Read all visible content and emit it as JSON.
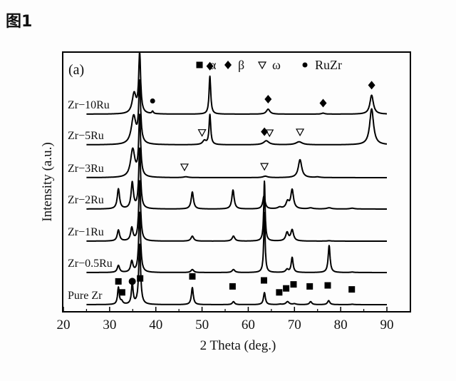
{
  "figure_label": "图1",
  "chart_data": {
    "type": "line",
    "panel_label": "(a)",
    "title": "",
    "xlabel": "2 Theta (deg.)",
    "ylabel": "Intensity (a.u.)",
    "xlim": [
      20,
      95
    ],
    "xticks": [
      20,
      30,
      40,
      50,
      60,
      70,
      80,
      90
    ],
    "x_minor_ticks": [
      25,
      35,
      45,
      55,
      65,
      75,
      85
    ],
    "grid": false,
    "legend_position": "top",
    "legend": [
      {
        "marker": "square",
        "label": "α"
      },
      {
        "marker": "diamond",
        "label": "β"
      },
      {
        "marker": "triangle-down-open",
        "label": "ω"
      },
      {
        "marker": "circle",
        "label": "RuZr"
      }
    ],
    "series": [
      {
        "name": "Zr-10Ru",
        "label": "Zr−10Ru",
        "peaks": [
          {
            "x": 35.3,
            "h": 1.0,
            "w": 0.5
          },
          {
            "x": 36.5,
            "h": 3.0,
            "w": 0.25
          },
          {
            "x": 39.3,
            "h": 0.12,
            "w": 0.2
          },
          {
            "x": 51.7,
            "h": 1.9,
            "w": 0.22
          },
          {
            "x": 64.3,
            "h": 0.25,
            "w": 0.45
          },
          {
            "x": 76.2,
            "h": 0.05,
            "w": 0.4
          },
          {
            "x": 86.7,
            "h": 0.95,
            "w": 0.45
          }
        ],
        "markers": [
          {
            "type": "circle",
            "x": 39.3
          },
          {
            "type": "diamond",
            "x": 51.7
          },
          {
            "type": "diamond",
            "x": 64.3
          },
          {
            "type": "diamond",
            "x": 76.2
          },
          {
            "type": "diamond",
            "x": 86.7
          }
        ]
      },
      {
        "name": "Zr-5Ru",
        "label": "Zr−5Ru",
        "peaks": [
          {
            "x": 35.2,
            "h": 1.4,
            "w": 0.6
          },
          {
            "x": 36.5,
            "h": 3.0,
            "w": 0.25
          },
          {
            "x": 50.5,
            "h": 0.2,
            "w": 0.45
          },
          {
            "x": 51.7,
            "h": 1.5,
            "w": 0.22
          },
          {
            "x": 63.9,
            "h": 0.2,
            "w": 0.7
          },
          {
            "x": 71.0,
            "h": 0.15,
            "w": 0.8
          },
          {
            "x": 86.7,
            "h": 1.8,
            "w": 0.5
          }
        ],
        "markers": [
          {
            "type": "triangle",
            "x": 50.0
          },
          {
            "type": "diamond",
            "x": 63.5
          },
          {
            "type": "triangle",
            "x": 64.6
          },
          {
            "type": "triangle",
            "x": 71.2
          }
        ]
      },
      {
        "name": "Zr-3Ru",
        "label": "Zr−3Ru",
        "peaks": [
          {
            "x": 35.0,
            "h": 1.4,
            "w": 0.55
          },
          {
            "x": 36.5,
            "h": 3.0,
            "w": 0.25
          },
          {
            "x": 46.5,
            "h": 0.04,
            "w": 0.6
          },
          {
            "x": 63.7,
            "h": 0.07,
            "w": 0.6
          },
          {
            "x": 71.2,
            "h": 0.9,
            "w": 0.45
          },
          {
            "x": 75.0,
            "h": 0.03,
            "w": 0.6
          }
        ],
        "markers": [
          {
            "type": "triangle",
            "x": 46.2
          },
          {
            "type": "triangle",
            "x": 63.5
          }
        ]
      },
      {
        "name": "Zr-2Ru",
        "label": "Zr−2Ru",
        "peaks": [
          {
            "x": 31.9,
            "h": 1.0,
            "w": 0.3
          },
          {
            "x": 34.9,
            "h": 1.3,
            "w": 0.3
          },
          {
            "x": 36.5,
            "h": 3.0,
            "w": 0.25
          },
          {
            "x": 47.9,
            "h": 0.85,
            "w": 0.3
          },
          {
            "x": 56.7,
            "h": 0.95,
            "w": 0.3
          },
          {
            "x": 63.4,
            "h": 0.65,
            "w": 0.3
          },
          {
            "x": 66.8,
            "h": 0.08,
            "w": 0.5
          },
          {
            "x": 68.5,
            "h": 0.35,
            "w": 0.4
          },
          {
            "x": 69.5,
            "h": 0.95,
            "w": 0.35
          },
          {
            "x": 73.5,
            "h": 0.05,
            "w": 0.6
          },
          {
            "x": 77.5,
            "h": 0.06,
            "w": 0.6
          },
          {
            "x": 82.5,
            "h": 0.04,
            "w": 0.6
          }
        ],
        "markers": []
      },
      {
        "name": "Zr-1Ru",
        "label": "Zr−1Ru",
        "peaks": [
          {
            "x": 31.9,
            "h": 0.55,
            "w": 0.3
          },
          {
            "x": 34.8,
            "h": 0.65,
            "w": 0.3
          },
          {
            "x": 36.5,
            "h": 3.0,
            "w": 0.25
          },
          {
            "x": 47.9,
            "h": 0.25,
            "w": 0.35
          },
          {
            "x": 56.8,
            "h": 0.25,
            "w": 0.35
          },
          {
            "x": 63.5,
            "h": 3.0,
            "w": 0.18
          },
          {
            "x": 68.4,
            "h": 0.42,
            "w": 0.35
          },
          {
            "x": 69.5,
            "h": 0.55,
            "w": 0.35
          },
          {
            "x": 77.5,
            "h": 0.02,
            "w": 0.5
          }
        ],
        "markers": []
      },
      {
        "name": "Zr-0.5Ru",
        "label": "Zr−0.5Ru",
        "peaks": [
          {
            "x": 31.9,
            "h": 0.35,
            "w": 0.3
          },
          {
            "x": 34.8,
            "h": 0.55,
            "w": 0.3
          },
          {
            "x": 36.5,
            "h": 3.0,
            "w": 0.25
          },
          {
            "x": 47.9,
            "h": 0.15,
            "w": 0.35
          },
          {
            "x": 56.8,
            "h": 0.15,
            "w": 0.35
          },
          {
            "x": 63.5,
            "h": 3.0,
            "w": 0.18
          },
          {
            "x": 68.4,
            "h": 0.15,
            "w": 0.35
          },
          {
            "x": 69.5,
            "h": 0.75,
            "w": 0.25
          },
          {
            "x": 77.5,
            "h": 1.35,
            "w": 0.25
          },
          {
            "x": 82.5,
            "h": 0.02,
            "w": 0.5
          }
        ],
        "markers": []
      },
      {
        "name": "Pure Zr",
        "label": "Pure Zr",
        "peaks": [
          {
            "x": 31.9,
            "h": 0.85,
            "w": 0.22
          },
          {
            "x": 32.6,
            "h": 0.15,
            "w": 0.3
          },
          {
            "x": 34.9,
            "h": 1.05,
            "w": 0.22
          },
          {
            "x": 36.5,
            "h": 3.0,
            "w": 0.25
          },
          {
            "x": 47.9,
            "h": 0.85,
            "w": 0.25
          },
          {
            "x": 56.8,
            "h": 0.15,
            "w": 0.3
          },
          {
            "x": 63.5,
            "h": 0.6,
            "w": 0.25
          },
          {
            "x": 66.9,
            "h": 0.02,
            "w": 0.4
          },
          {
            "x": 68.5,
            "h": 0.15,
            "w": 0.4
          },
          {
            "x": 70.0,
            "h": 0.04,
            "w": 0.4
          },
          {
            "x": 73.5,
            "h": 0.15,
            "w": 0.3
          },
          {
            "x": 77.4,
            "h": 0.2,
            "w": 0.3
          },
          {
            "x": 82.5,
            "h": 0.02,
            "w": 0.4
          }
        ],
        "markers": [
          {
            "type": "square",
            "x": 31.9,
            "level": 0.95
          },
          {
            "type": "square",
            "x": 32.7,
            "level": 0.4
          },
          {
            "type": "circle-square",
            "x": 34.9,
            "level": 0.95
          },
          {
            "type": "square",
            "x": 36.6,
            "level": 1.1
          },
          {
            "type": "square",
            "x": 47.9,
            "level": 1.2
          },
          {
            "type": "square",
            "x": 56.6,
            "level": 0.7
          },
          {
            "type": "square",
            "x": 63.4,
            "level": 1.0
          },
          {
            "type": "square",
            "x": 66.7,
            "level": 0.4
          },
          {
            "type": "square",
            "x": 68.2,
            "level": 0.6
          },
          {
            "type": "square",
            "x": 69.8,
            "level": 0.8
          },
          {
            "type": "square",
            "x": 73.3,
            "level": 0.7
          },
          {
            "type": "square",
            "x": 77.2,
            "level": 0.75
          },
          {
            "type": "square",
            "x": 82.4,
            "level": 0.55
          }
        ]
      }
    ]
  }
}
